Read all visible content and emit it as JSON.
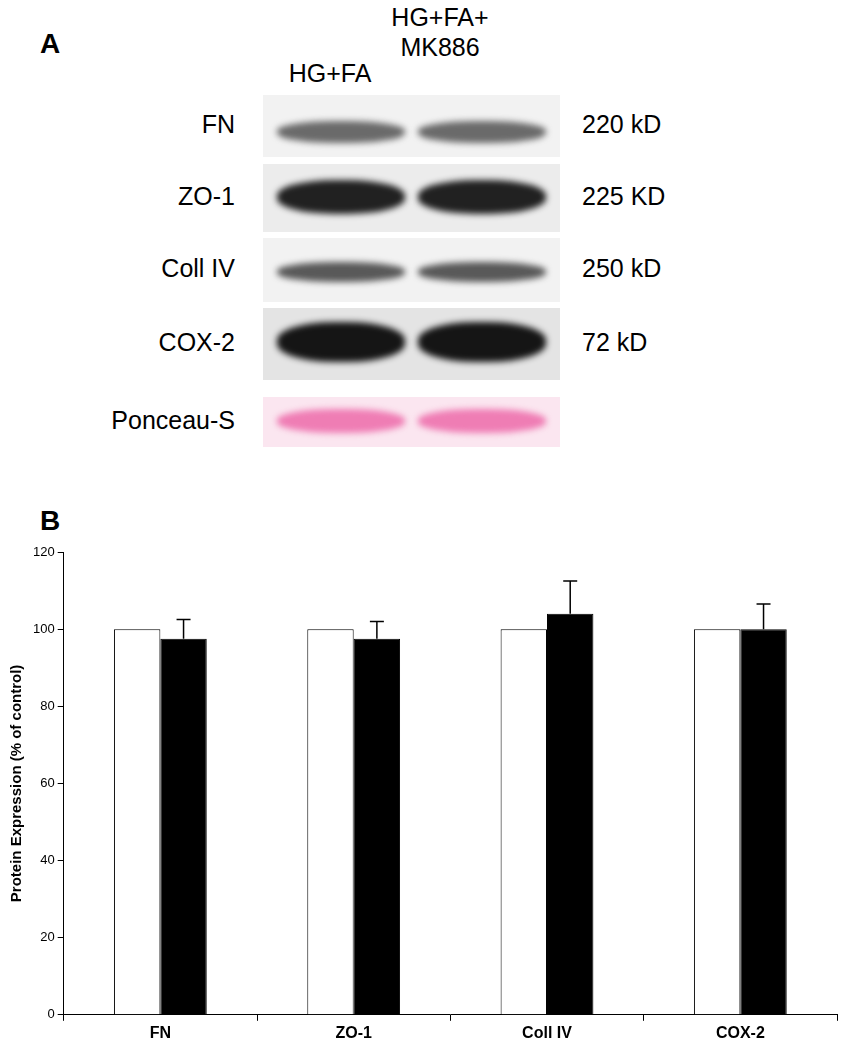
{
  "panel_a": {
    "letter": "A",
    "columns": [
      "HG+FA",
      "HG+FA+ MK886"
    ],
    "rows": [
      {
        "label": "FN",
        "size": "220 kD"
      },
      {
        "label": "ZO-1",
        "size": "225 KD"
      },
      {
        "label": "Coll IV",
        "size": "250 kD"
      },
      {
        "label": "COX-2",
        "size": "72 kD"
      },
      {
        "label": "Ponceau-S"
      }
    ]
  },
  "chart_data": {
    "type": "bar",
    "panel_letter": "B",
    "y_label": "Protein Expression (% of control)",
    "categories": [
      "FN",
      "ZO-1",
      "Coll IV",
      "COX-2"
    ],
    "series": [
      {
        "color": "#ffffff",
        "values": [
          100,
          100,
          100,
          100
        ]
      },
      {
        "color": "#000000",
        "values": [
          97.5,
          97.5,
          104,
          100
        ],
        "errors": [
          5,
          4.5,
          8.5,
          6.5
        ]
      }
    ],
    "ylim": [
      0,
      120
    ],
    "yticks": [
      0,
      20,
      40,
      60,
      80,
      100,
      120
    ],
    "grid": false
  }
}
